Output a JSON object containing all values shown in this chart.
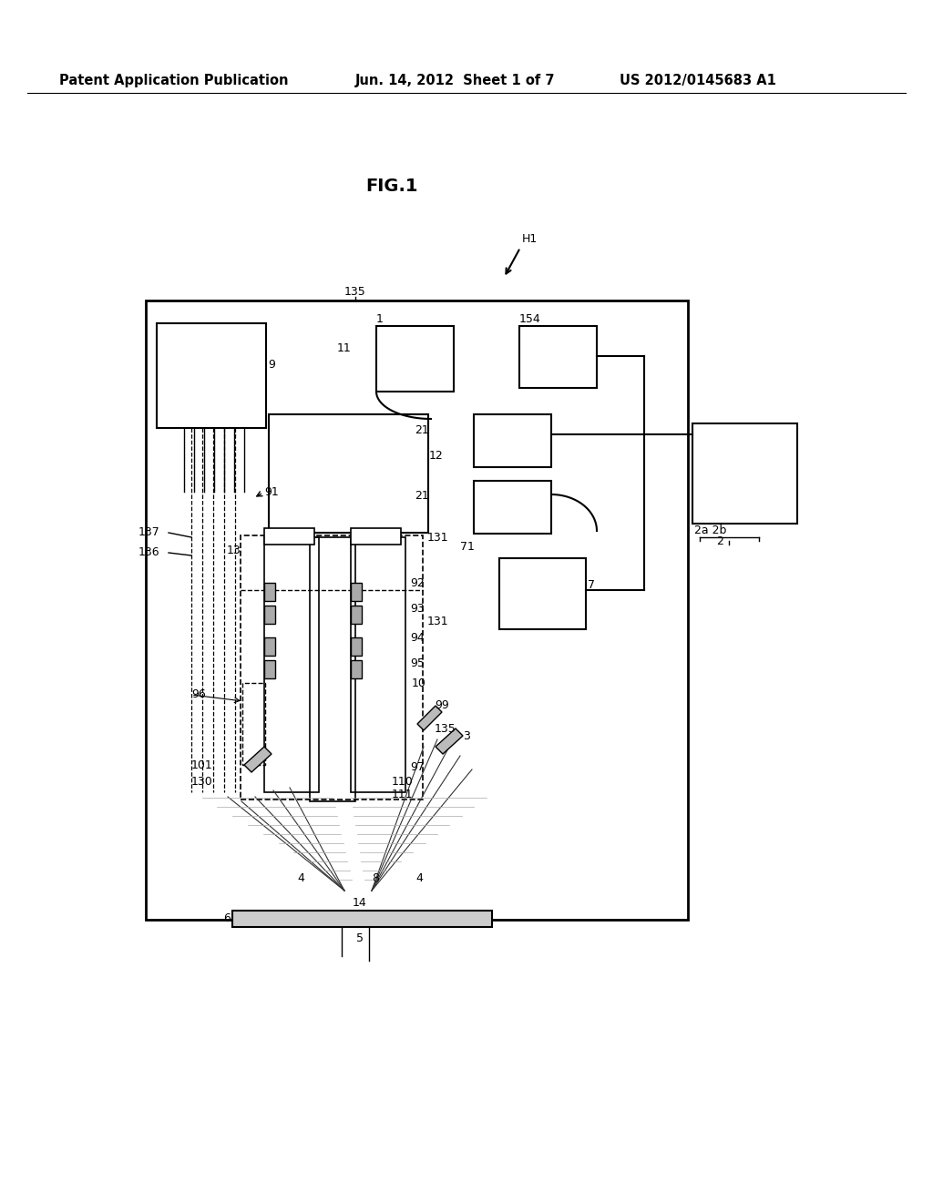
{
  "bg_color": "#ffffff",
  "header_text": "Patent Application Publication",
  "header_date": "Jun. 14, 2012  Sheet 1 of 7",
  "header_patent": "US 2012/0145683 A1",
  "fig_label": "FIG.1",
  "header_fontsize": 10.5,
  "fig_fontsize": 14,
  "label_fontsize": 9
}
